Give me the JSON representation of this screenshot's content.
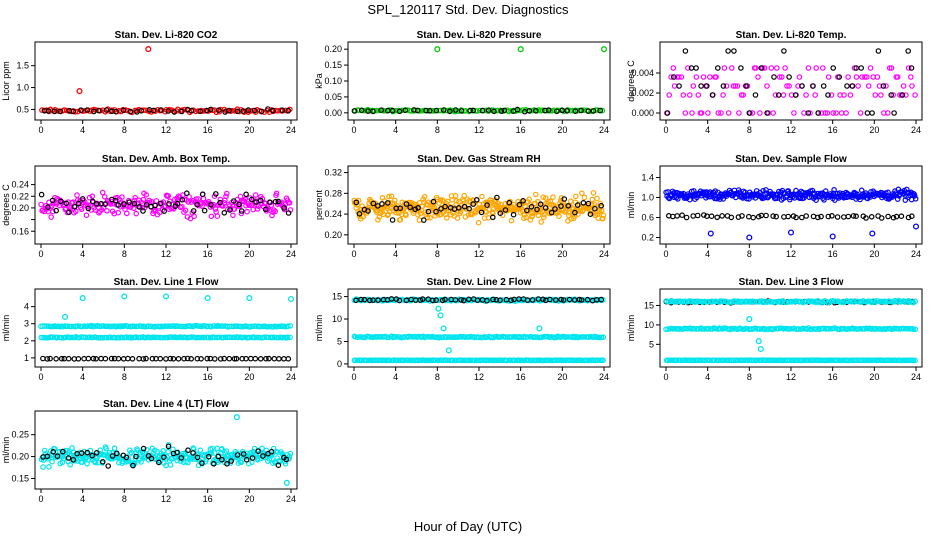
{
  "figure": {
    "title": "SPL_120117  Std. Dev. Diagnostics",
    "xlabel": "Hour of Day (UTC)"
  },
  "chart_data": [
    {
      "type": "scatter",
      "title": "Stan. Dev. Li-820 CO2",
      "ylabel": "Licor ppm",
      "xlim": [
        0,
        24
      ],
      "ylim": [
        0.35,
        1.95
      ],
      "xticks": [
        0,
        4,
        8,
        12,
        16,
        20,
        24
      ],
      "yticks": [
        0.5,
        1.0,
        1.5
      ],
      "ytick_labels": [
        "0.5",
        "1.0",
        "1.5"
      ],
      "series": [
        {
          "color": "#ff0000",
          "style": "band",
          "center": 0.47,
          "spread": 0.05,
          "n": 110
        },
        {
          "color": "#000000",
          "style": "band",
          "center": 0.47,
          "spread": 0.05,
          "n": 40
        }
      ],
      "points": [
        {
          "x": 3.7,
          "y": 0.92,
          "color": "#ff0000"
        },
        {
          "x": 10.3,
          "y": 1.88,
          "color": "#ff0000"
        }
      ]
    },
    {
      "type": "scatter",
      "title": "Stan. Dev. Li-820 Pressure",
      "ylabel": "kPa",
      "xlim": [
        0,
        24
      ],
      "ylim": [
        -0.01,
        0.21
      ],
      "xticks": [
        0,
        4,
        8,
        12,
        16,
        20,
        24
      ],
      "yticks": [
        0.0,
        0.05,
        0.1,
        0.15,
        0.2
      ],
      "ytick_labels": [
        "0.00",
        "0.05",
        "0.10",
        "0.15",
        "0.20"
      ],
      "series": [
        {
          "color": "#00cc00",
          "style": "band",
          "center": 0.007,
          "spread": 0.004,
          "n": 110
        },
        {
          "color": "#000000",
          "style": "band",
          "center": 0.007,
          "spread": 0.004,
          "n": 40
        }
      ],
      "points": [
        {
          "x": 8.0,
          "y": 0.2,
          "color": "#00cc00"
        },
        {
          "x": 16.0,
          "y": 0.2,
          "color": "#00cc00"
        },
        {
          "x": 24.0,
          "y": 0.2,
          "color": "#00cc00"
        }
      ]
    },
    {
      "type": "scatter",
      "title": "Stan. Dev. Li-820 Temp.",
      "ylabel": "degrees C",
      "xlim": [
        0,
        24
      ],
      "ylim": [
        -0.0003,
        0.0067
      ],
      "xticks": [
        0,
        4,
        8,
        12,
        16,
        20,
        24
      ],
      "yticks": [
        0.0,
        0.002,
        0.004
      ],
      "ytick_labels": [
        "0.000",
        "0.002",
        "0.004"
      ],
      "series": [
        {
          "color": "#ff00ff",
          "style": "levels",
          "levels": [
            0.0,
            0.0018,
            0.0027,
            0.0036,
            0.0045
          ],
          "n": 120
        },
        {
          "color": "#000000",
          "style": "levels",
          "levels": [
            0.0,
            0.0018,
            0.0027,
            0.0036,
            0.0045,
            0.0062
          ],
          "n": 45
        }
      ],
      "points": []
    },
    {
      "type": "scatter",
      "title": "Stan. Dev. Amb. Box Temp.",
      "ylabel": "degrees C",
      "xlim": [
        0,
        24
      ],
      "ylim": [
        0.145,
        0.265
      ],
      "xticks": [
        0,
        4,
        8,
        12,
        16,
        20,
        24
      ],
      "yticks": [
        0.16,
        0.18,
        0.2,
        0.22,
        0.24
      ],
      "ytick_labels": [
        "0.16",
        "",
        "0.20",
        "0.22",
        "0.24"
      ],
      "series": [
        {
          "color": "#ff00ff",
          "style": "band",
          "center": 0.205,
          "spread": 0.028,
          "n": 260
        },
        {
          "color": "#000000",
          "style": "band",
          "center": 0.205,
          "spread": 0.025,
          "n": 55
        }
      ],
      "points": []
    },
    {
      "type": "scatter",
      "title": "Stan. Dev. Gas Stream RH",
      "ylabel": "percent",
      "xlim": [
        0,
        24
      ],
      "ylim": [
        0.19,
        0.325
      ],
      "xticks": [
        0,
        4,
        8,
        12,
        16,
        20,
        24
      ],
      "yticks": [
        0.2,
        0.24,
        0.28,
        0.32
      ],
      "ytick_labels": [
        "0.20",
        "0.24",
        "0.28",
        "0.32"
      ],
      "series": [
        {
          "color": "#ffa500",
          "style": "band",
          "center": 0.252,
          "spread": 0.032,
          "n": 380
        },
        {
          "color": "#000000",
          "style": "band",
          "center": 0.252,
          "spread": 0.028,
          "n": 55
        }
      ],
      "points": []
    },
    {
      "type": "scatter",
      "title": "Stan. Dev. Sample Flow",
      "ylabel": "ml/min",
      "xlim": [
        0,
        24
      ],
      "ylim": [
        0.15,
        1.55
      ],
      "xticks": [
        0,
        4,
        8,
        12,
        16,
        20,
        24
      ],
      "yticks": [
        0.2,
        0.6,
        1.0,
        1.4
      ],
      "ytick_labels": [
        "0.2",
        "0.6",
        "1.0",
        "1.4"
      ],
      "series": [
        {
          "color": "#0000ff",
          "style": "band",
          "center": 1.05,
          "spread": 0.14,
          "n": 320
        },
        {
          "color": "#000000",
          "style": "band",
          "center": 0.62,
          "spread": 0.04,
          "n": 50
        }
      ],
      "points": [
        {
          "x": 4.3,
          "y": 0.28,
          "color": "#0000ff"
        },
        {
          "x": 8.0,
          "y": 0.2,
          "color": "#0000ff"
        },
        {
          "x": 12.0,
          "y": 0.3,
          "color": "#0000ff"
        },
        {
          "x": 16.0,
          "y": 0.22,
          "color": "#0000ff"
        },
        {
          "x": 19.8,
          "y": 0.28,
          "color": "#0000ff"
        },
        {
          "x": 24.0,
          "y": 0.42,
          "color": "#0000ff"
        }
      ]
    },
    {
      "type": "scatter",
      "title": "Stan. Dev. Line 1 Flow",
      "ylabel": "ml/min",
      "xlim": [
        0,
        24
      ],
      "ylim": [
        0.7,
        4.8
      ],
      "xticks": [
        0,
        4,
        8,
        12,
        16,
        20,
        24
      ],
      "yticks": [
        1,
        2,
        3,
        4
      ],
      "ytick_labels": [
        "1",
        "2",
        "3",
        "4"
      ],
      "series": [
        {
          "color": "#00e5ee",
          "style": "band",
          "center": 2.85,
          "spread": 0.05,
          "n": 150
        },
        {
          "color": "#00e5ee",
          "style": "band",
          "center": 2.2,
          "spread": 0.04,
          "n": 150
        },
        {
          "color": "#000000",
          "style": "band",
          "center": 0.95,
          "spread": 0.02,
          "n": 55
        }
      ],
      "points": [
        {
          "x": 2.3,
          "y": 3.4,
          "color": "#00e5ee"
        },
        {
          "x": 4.0,
          "y": 4.5,
          "color": "#00e5ee"
        },
        {
          "x": 8.0,
          "y": 4.6,
          "color": "#00e5ee"
        },
        {
          "x": 12.0,
          "y": 4.6,
          "color": "#00e5ee"
        },
        {
          "x": 16.0,
          "y": 4.5,
          "color": "#00e5ee"
        },
        {
          "x": 20.0,
          "y": 4.5,
          "color": "#00e5ee"
        },
        {
          "x": 24.0,
          "y": 4.45,
          "color": "#00e5ee"
        }
      ]
    },
    {
      "type": "scatter",
      "title": "Stan. Dev. Line 2 Flow",
      "ylabel": "ml/min",
      "xlim": [
        0,
        24
      ],
      "ylim": [
        0.2,
        15.8
      ],
      "xticks": [
        0,
        4,
        8,
        12,
        16,
        20,
        24
      ],
      "yticks": [
        0,
        5,
        10,
        15
      ],
      "ytick_labels": [
        "0",
        "5",
        "10",
        "15"
      ],
      "series": [
        {
          "color": "#00e5ee",
          "style": "band",
          "center": 14.2,
          "spread": 0.3,
          "n": 160
        },
        {
          "color": "#00e5ee",
          "style": "band",
          "center": 6.0,
          "spread": 0.2,
          "n": 160
        },
        {
          "color": "#00e5ee",
          "style": "band",
          "center": 0.8,
          "spread": 0.05,
          "n": 160
        },
        {
          "color": "#000000",
          "style": "band",
          "center": 14.3,
          "spread": 0.3,
          "n": 55
        }
      ],
      "points": [
        {
          "x": 8.1,
          "y": 12.3,
          "color": "#00e5ee"
        },
        {
          "x": 8.3,
          "y": 10.8,
          "color": "#00e5ee"
        },
        {
          "x": 8.6,
          "y": 7.9,
          "color": "#00e5ee"
        },
        {
          "x": 9.1,
          "y": 3.0,
          "color": "#00e5ee"
        },
        {
          "x": 17.8,
          "y": 7.9,
          "color": "#00e5ee"
        }
      ]
    },
    {
      "type": "scatter",
      "title": "Stan. Dev. Line 3 Flow",
      "ylabel": "ml/min",
      "xlim": [
        0,
        24
      ],
      "ylim": [
        0.2,
        18.2
      ],
      "xticks": [
        0,
        4,
        8,
        12,
        16,
        20,
        24
      ],
      "yticks": [
        5,
        10,
        15
      ],
      "ytick_labels": [
        "5",
        "10",
        "15"
      ],
      "series": [
        {
          "color": "#000000",
          "style": "band",
          "center": 15.9,
          "spread": 0.35,
          "n": 60
        },
        {
          "color": "#00e5ee",
          "style": "band",
          "center": 16.0,
          "spread": 0.35,
          "n": 150
        },
        {
          "color": "#00e5ee",
          "style": "band",
          "center": 9.0,
          "spread": 0.25,
          "n": 160
        },
        {
          "color": "#00e5ee",
          "style": "band",
          "center": 0.9,
          "spread": 0.05,
          "n": 160
        }
      ],
      "points": [
        {
          "x": 8.0,
          "y": 11.5,
          "color": "#00e5ee"
        },
        {
          "x": 8.9,
          "y": 5.8,
          "color": "#00e5ee"
        },
        {
          "x": 9.1,
          "y": 3.8,
          "color": "#00e5ee"
        }
      ]
    },
    {
      "type": "scatter",
      "title": "Stan. Dev. Line 4 (LT) Flow",
      "ylabel": "ml/min",
      "xlim": [
        0,
        24
      ],
      "ylim": [
        0.135,
        0.295
      ],
      "xticks": [
        0,
        4,
        8,
        12,
        16,
        20,
        24
      ],
      "yticks": [
        0.15,
        0.2,
        0.25
      ],
      "ytick_labels": [
        "0.15",
        "0.20",
        "0.25"
      ],
      "series": [
        {
          "color": "#00e5ee",
          "style": "band",
          "center": 0.2,
          "spread": 0.03,
          "n": 300
        },
        {
          "color": "#000000",
          "style": "band",
          "center": 0.2,
          "spread": 0.028,
          "n": 50
        }
      ],
      "points": [
        {
          "x": 18.8,
          "y": 0.29,
          "color": "#00e5ee"
        },
        {
          "x": 23.6,
          "y": 0.14,
          "color": "#00e5ee"
        }
      ]
    }
  ]
}
